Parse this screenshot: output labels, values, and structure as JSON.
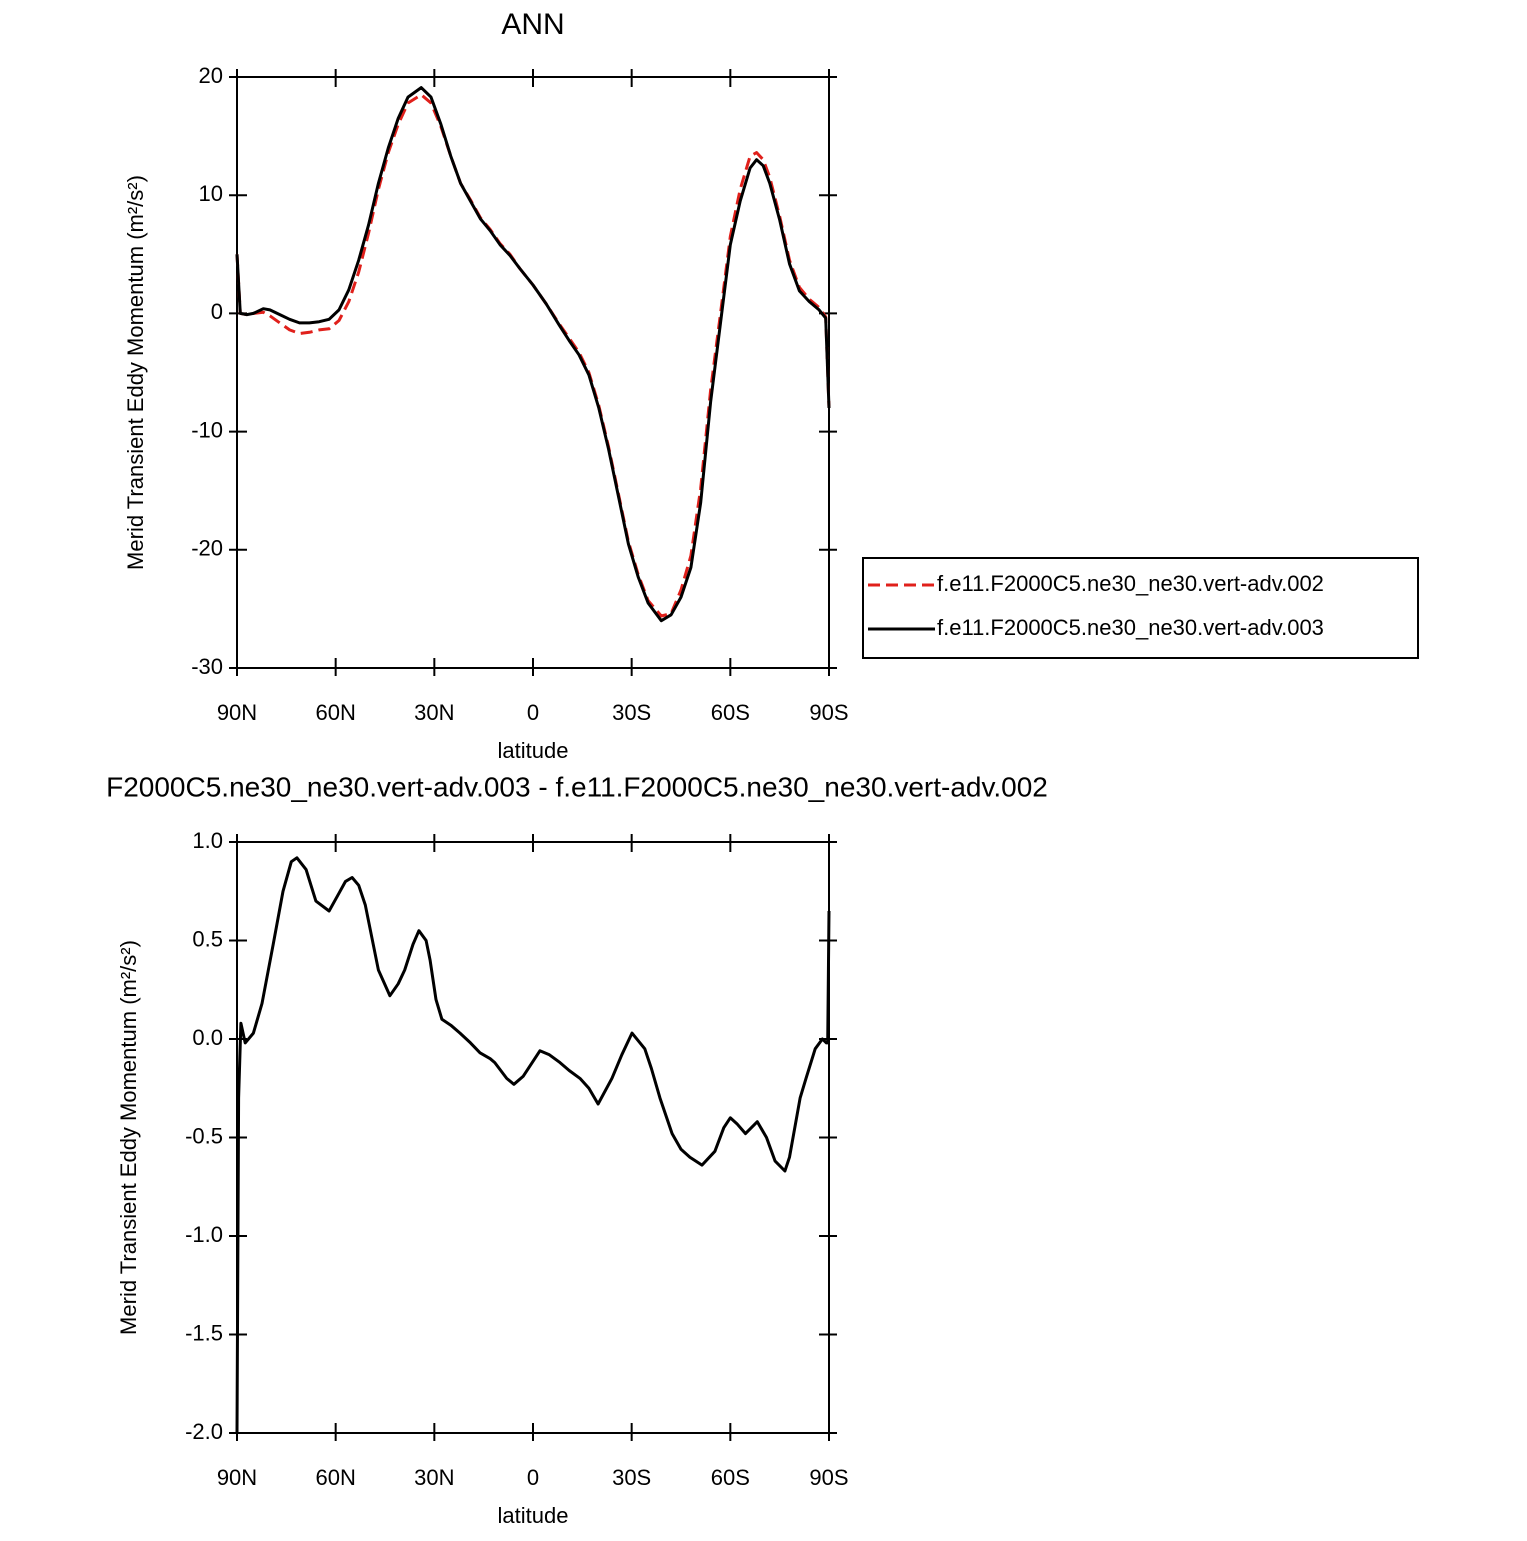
{
  "chart_data": [
    {
      "type": "line",
      "title": "ANN",
      "x_label": "latitude",
      "y_label": "Merid Transient Eddy Momentum (m²/s²)",
      "x": [
        90,
        89,
        87,
        85,
        82,
        80,
        77,
        74,
        71,
        68,
        65,
        62,
        59,
        56,
        53,
        50,
        47,
        44,
        41,
        38,
        34,
        31,
        28,
        25,
        22,
        19,
        16,
        13,
        10,
        7,
        4,
        0,
        -4,
        -8,
        -11,
        -14,
        -17,
        -20,
        -23,
        -26,
        -29,
        -32,
        -35,
        -39,
        -42,
        -45,
        -48,
        -51,
        -54,
        -57,
        -60,
        -63,
        -66,
        -68,
        -70,
        -72,
        -75,
        -78,
        -81,
        -84,
        -87,
        -89,
        -90
      ],
      "series": [
        {
          "name": "f.e11.F2000C5.ne30_ne30.vert-adv.002",
          "color": "#e0201b",
          "dash": true,
          "values": [
            5,
            0,
            -0.1,
            0,
            0.1,
            -0.2,
            -0.8,
            -1.4,
            -1.7,
            -1.6,
            -1.4,
            -1.3,
            -0.6,
            1,
            3.5,
            6.8,
            10.5,
            13.6,
            16,
            17.8,
            18.5,
            17.8,
            15.8,
            13.3,
            11,
            9.6,
            8.1,
            7.1,
            5.9,
            5,
            3.8,
            2.4,
            0.8,
            -0.9,
            -2.1,
            -3.3,
            -5,
            -7.8,
            -11.3,
            -15.3,
            -19.3,
            -22.1,
            -24.3,
            -25.6,
            -25.4,
            -23.4,
            -20.5,
            -14.8,
            -6.5,
            0,
            6.5,
            10.5,
            13.3,
            13.6,
            13,
            11.5,
            8.2,
            4.5,
            2.2,
            1.2,
            0.5,
            -0.3,
            -8
          ]
        },
        {
          "name": "f.e11.F2000C5.ne30_ne30.vert-adv.003",
          "color": "#000000",
          "dash": false,
          "values": [
            5,
            0,
            -0.1,
            0,
            0.4,
            0.3,
            -0.1,
            -0.5,
            -0.8,
            -0.8,
            -0.7,
            -0.5,
            0.3,
            2,
            4.5,
            7.5,
            11,
            14,
            16.5,
            18.3,
            19.1,
            18.3,
            16,
            13.3,
            11,
            9.5,
            8,
            7,
            5.8,
            4.9,
            3.8,
            2.4,
            0.8,
            -1,
            -2.3,
            -3.5,
            -5.2,
            -8,
            -11.5,
            -15.5,
            -19.5,
            -22.3,
            -24.5,
            -26,
            -25.5,
            -24,
            -21.5,
            -16,
            -7.5,
            -0.8,
            5.8,
            9.5,
            12.3,
            13,
            12.5,
            11,
            7.9,
            4.2,
            1.9,
            1,
            0.3,
            -0.4,
            -8
          ]
        }
      ],
      "xlim": [
        90,
        -90
      ],
      "xticks": [
        {
          "value": 90,
          "label": "90N"
        },
        {
          "value": 60,
          "label": "60N"
        },
        {
          "value": 30,
          "label": "30N"
        },
        0,
        {
          "value": -30,
          "label": "30S"
        },
        {
          "value": -60,
          "label": "60S"
        },
        {
          "value": -90,
          "label": "90S"
        }
      ],
      "ylim": [
        -30,
        20
      ],
      "yticks": [
        20,
        10,
        0,
        -10,
        -20,
        -30
      ],
      "legend": "right"
    },
    {
      "type": "line",
      "title": "F2000C5.ne30_ne30.vert-adv.003 - f.e11.F2000C5.ne30_ne30.vert-adv.002",
      "x_label": "latitude",
      "y_label": "Merid Transient Eddy Momentum (m²/s²)",
      "x": [
        90,
        89.5,
        88.8,
        87.5,
        85,
        82.4,
        79,
        76,
        73.5,
        71.8,
        69,
        66,
        62,
        59,
        57,
        55,
        53,
        51,
        47,
        43.5,
        41,
        39,
        36.5,
        34.7,
        32.5,
        31.3,
        29.5,
        27.7,
        25,
        22.2,
        19,
        16.1,
        13,
        11.6,
        8,
        5.8,
        3,
        -2.1,
        -5,
        -8.2,
        -11,
        -14.3,
        -17,
        -19.8,
        -24,
        -27,
        -30.1,
        -34,
        -36,
        -38.6,
        -42.3,
        -45,
        -47.7,
        -51.4,
        -55.3,
        -58,
        -60,
        -62,
        -64.6,
        -68.2,
        -71,
        -73.6,
        -76.6,
        -78,
        -81.2,
        -83,
        -85.8,
        -88,
        -89.2,
        -89.6,
        -90
      ],
      "color": "#000000",
      "values": [
        -2,
        -0.3,
        0.08,
        -0.02,
        0.03,
        0.18,
        0.48,
        0.75,
        0.9,
        0.92,
        0.86,
        0.7,
        0.65,
        0.74,
        0.8,
        0.82,
        0.78,
        0.68,
        0.35,
        0.22,
        0.28,
        0.35,
        0.48,
        0.55,
        0.5,
        0.4,
        0.2,
        0.1,
        0.07,
        0.03,
        -0.02,
        -0.07,
        -0.1,
        -0.12,
        -0.2,
        -0.23,
        -0.19,
        -0.06,
        -0.08,
        -0.12,
        -0.16,
        -0.2,
        -0.25,
        -0.33,
        -0.2,
        -0.08,
        0.03,
        -0.05,
        -0.15,
        -0.3,
        -0.48,
        -0.56,
        -0.6,
        -0.64,
        -0.57,
        -0.45,
        -0.4,
        -0.43,
        -0.48,
        -0.42,
        -0.5,
        -0.62,
        -0.67,
        -0.6,
        -0.3,
        -0.2,
        -0.05,
        0,
        -0.02,
        -0.02,
        0.65
      ],
      "xlim": [
        90,
        -90
      ],
      "xticks": [
        {
          "value": 90,
          "label": "90N"
        },
        {
          "value": 60,
          "label": "60N"
        },
        {
          "value": 30,
          "label": "30N"
        },
        0,
        {
          "value": -30,
          "label": "30S"
        },
        {
          "value": -60,
          "label": "60S"
        },
        {
          "value": -90,
          "label": "90S"
        }
      ],
      "ylim": [
        -2,
        1
      ],
      "yticks": [
        {
          "value": 1,
          "label": "1.0"
        },
        0.5,
        {
          "value": 0,
          "label": "0.0"
        },
        -0.5,
        {
          "value": -1,
          "label": "-1.0"
        },
        -1.5,
        {
          "value": -2,
          "label": "-2.0"
        }
      ]
    }
  ]
}
